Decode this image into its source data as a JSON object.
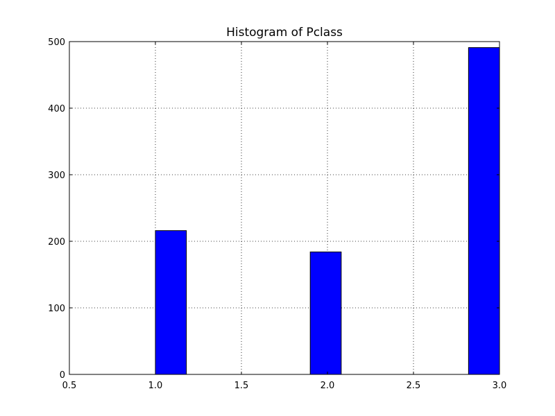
{
  "chart_data": {
    "type": "bar",
    "title": "Histogram of Pclass",
    "xlabel": "",
    "ylabel": "",
    "xlim": [
      0.5,
      3.0
    ],
    "ylim": [
      0,
      500
    ],
    "xticks": [
      "0.5",
      "1.0",
      "1.5",
      "2.0",
      "2.5",
      "3.0"
    ],
    "yticks": [
      "0",
      "100",
      "200",
      "300",
      "400",
      "500"
    ],
    "grid": true,
    "bar_color": "#0000ff",
    "edge_color": "#000000",
    "bins": [
      {
        "x0": 1.0,
        "x1": 1.18,
        "value": 216
      },
      {
        "x0": 1.9,
        "x1": 2.08,
        "value": 184
      },
      {
        "x0": 2.82,
        "x1": 3.0,
        "value": 491
      }
    ]
  }
}
